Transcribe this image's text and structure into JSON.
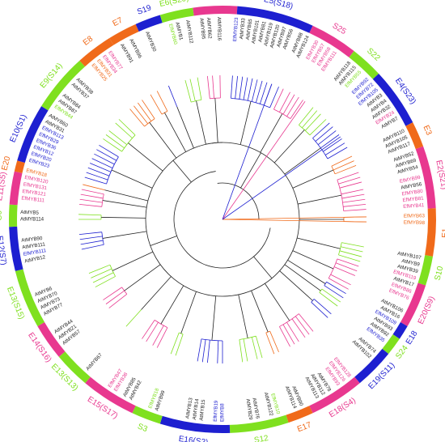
{
  "colors": {
    "magenta": "#e8388f",
    "blue": "#1d1fd0",
    "green": "#7fe01f",
    "orange": "#f06a1a",
    "black": "#222222"
  },
  "ring_segments": [
    {
      "label": "S15",
      "color": "magenta",
      "from": -8,
      "to": 4
    },
    {
      "label": "E5(S18)",
      "color": "blue",
      "from": 4,
      "to": 25
    },
    {
      "label": "S25",
      "color": "magenta",
      "from": 25,
      "to": 38
    },
    {
      "label": "S22",
      "color": "green",
      "from": 38,
      "to": 47
    },
    {
      "label": "E4(S23)",
      "color": "blue",
      "from": 47,
      "to": 63
    },
    {
      "label": "E3",
      "color": "orange",
      "from": 63,
      "to": 70
    },
    {
      "label": "E2(S21)",
      "color": "magenta",
      "from": 70,
      "to": 87
    },
    {
      "label": "E1",
      "color": "orange",
      "from": 87,
      "to": 100
    },
    {
      "label": "S10",
      "color": "green",
      "from": 100,
      "to": 108
    },
    {
      "label": "E20(S9)",
      "color": "magenta",
      "from": 108,
      "to": 120
    },
    {
      "label": "E18",
      "color": "blue",
      "from": 120,
      "to": 124
    },
    {
      "label": "S24",
      "color": "green",
      "from": 124,
      "to": 129
    },
    {
      "label": "E19(S11)",
      "color": "blue",
      "from": 129,
      "to": 140
    },
    {
      "label": "E18(S4)",
      "color": "magenta",
      "from": 140,
      "to": 155
    },
    {
      "label": "E17",
      "color": "orange",
      "from": 155,
      "to": 162
    },
    {
      "label": "S12",
      "color": "green",
      "from": 162,
      "to": 178
    },
    {
      "label": "E16(S2)",
      "color": "blue",
      "from": 178,
      "to": 197
    },
    {
      "label": "S3",
      "color": "green",
      "from": 197,
      "to": 205
    },
    {
      "label": "E15(S17)",
      "color": "magenta",
      "from": 205,
      "to": 220
    },
    {
      "label": "E13(S13)",
      "color": "green",
      "from": 220,
      "to": 230
    },
    {
      "label": "E14(S16)",
      "color": "magenta",
      "from": 230,
      "to": 240
    },
    {
      "label": "E13(S15)",
      "color": "green",
      "from": 240,
      "to": 256
    },
    {
      "label": "E12(S7)",
      "color": "blue",
      "from": 256,
      "to": 268
    },
    {
      "label": "S6",
      "color": "green",
      "from": 268,
      "to": 274
    },
    {
      "label": "E11(S5)",
      "color": "magenta",
      "from": 274,
      "to": 283
    },
    {
      "label": "E20",
      "color": "orange",
      "from": 283,
      "to": 286
    },
    {
      "label": "E10(S1)",
      "color": "blue",
      "from": 286,
      "to": 302
    },
    {
      "label": "E9(S14)",
      "color": "green",
      "from": 302,
      "to": 318
    },
    {
      "label": "E8",
      "color": "orange",
      "from": 318,
      "to": 328
    },
    {
      "label": "E7",
      "color": "orange",
      "from": 328,
      "to": 336
    },
    {
      "label": "S19",
      "color": "blue",
      "from": 336,
      "to": 343
    },
    {
      "label": "E6(S20)",
      "color": "green",
      "from": 343,
      "to": 352
    }
  ],
  "leaves": [
    {
      "name": "AtMYB95",
      "angle": -6,
      "color": "black"
    },
    {
      "name": "AtMYB62",
      "angle": -4,
      "color": "black"
    },
    {
      "name": "AtMYB116",
      "angle": -1,
      "color": "black"
    },
    {
      "name": "EfMYB123",
      "angle": 4,
      "color": "blue"
    },
    {
      "name": "AtMYB33",
      "angle": 6,
      "color": "black"
    },
    {
      "name": "AtMYB65",
      "angle": 8,
      "color": "black"
    },
    {
      "name": "AtMYB101",
      "angle": 10,
      "color": "black"
    },
    {
      "name": "AtMYB81",
      "angle": 12,
      "color": "black"
    },
    {
      "name": "AtMYB119",
      "angle": 14,
      "color": "black"
    },
    {
      "name": "AtMYB120",
      "angle": 16,
      "color": "black"
    },
    {
      "name": "AtMYB97",
      "angle": 18,
      "color": "black"
    },
    {
      "name": "AtMYB56",
      "angle": 20,
      "color": "black"
    },
    {
      "name": "AtMYB88",
      "angle": 23,
      "color": "black"
    },
    {
      "name": "AtMYB124",
      "angle": 25,
      "color": "black"
    },
    {
      "name": "EfMYB30",
      "angle": 28,
      "color": "magenta"
    },
    {
      "name": "EfMYB57",
      "angle": 30,
      "color": "magenta"
    },
    {
      "name": "EfMYB58",
      "angle": 32,
      "color": "magenta"
    },
    {
      "name": "EfMYB111",
      "angle": 34,
      "color": "magenta"
    },
    {
      "name": "AtMYB118",
      "angle": 39,
      "color": "black"
    },
    {
      "name": "AtMYB115",
      "angle": 41,
      "color": "black"
    },
    {
      "name": "EfMYB55",
      "angle": 43,
      "color": "green"
    },
    {
      "name": "EfMYB92",
      "angle": 46,
      "color": "blue"
    },
    {
      "name": "EfMYB72",
      "angle": 48,
      "color": "blue"
    },
    {
      "name": "EfMYB105",
      "angle": 50,
      "color": "blue"
    },
    {
      "name": "AtMYB3",
      "angle": 52,
      "color": "black"
    },
    {
      "name": "AtMYB4",
      "angle": 54,
      "color": "black"
    },
    {
      "name": "AtMYB32",
      "angle": 56,
      "color": "black"
    },
    {
      "name": "EfMYB24",
      "angle": 58,
      "color": "magenta"
    },
    {
      "name": "AtMYB7",
      "angle": 60,
      "color": "black"
    },
    {
      "name": "AtMYB110",
      "angle": 64,
      "color": "black"
    },
    {
      "name": "AtMYB105",
      "angle": 66,
      "color": "black"
    },
    {
      "name": "AtMYB117",
      "angle": 68,
      "color": "black"
    },
    {
      "name": "AtMYB52",
      "angle": 71,
      "color": "black"
    },
    {
      "name": "AtMYB69",
      "angle": 73,
      "color": "black"
    },
    {
      "name": "AtMYB54",
      "angle": 75,
      "color": "black"
    },
    {
      "name": "EfMYB99",
      "angle": 78,
      "color": "magenta"
    },
    {
      "name": "AtMYB56",
      "angle": 80,
      "color": "black"
    },
    {
      "name": "EfMYB80",
      "angle": 82,
      "color": "magenta"
    },
    {
      "name": "EfMYB81",
      "angle": 84,
      "color": "magenta"
    },
    {
      "name": "EfMYB41",
      "angle": 86,
      "color": "magenta"
    },
    {
      "name": "EfMYB63",
      "angle": 89,
      "color": "orange"
    },
    {
      "name": "EfMYB98",
      "angle": 91,
      "color": "orange"
    },
    {
      "name": "AtMYB107",
      "angle": 101,
      "color": "black"
    },
    {
      "name": "AtMYB9",
      "angle": 103,
      "color": "black"
    },
    {
      "name": "AtMYB39",
      "angle": 105,
      "color": "black"
    },
    {
      "name": "EfMYB119",
      "angle": 107,
      "color": "magenta"
    },
    {
      "name": "AtMYB17",
      "angle": 109,
      "color": "black"
    },
    {
      "name": "EfMYB86",
      "angle": 111,
      "color": "magenta"
    },
    {
      "name": "EfMYB76",
      "angle": 113,
      "color": "magenta"
    },
    {
      "name": "AtMYB106",
      "angle": 117,
      "color": "black"
    },
    {
      "name": "AtMYB16",
      "angle": 119,
      "color": "black"
    },
    {
      "name": "EfMYB109",
      "angle": 121,
      "color": "blue"
    },
    {
      "name": "AtMYB93",
      "angle": 123,
      "color": "black"
    },
    {
      "name": "AtMYB92",
      "angle": 125,
      "color": "black"
    },
    {
      "name": "EfMYB35",
      "angle": 127,
      "color": "blue"
    },
    {
      "name": "AtMYB74",
      "angle": 131,
      "color": "black"
    },
    {
      "name": "AtMYB102",
      "angle": 133,
      "color": "black"
    },
    {
      "name": "EfMYB128",
      "angle": 141,
      "color": "magenta"
    },
    {
      "name": "EfMYB126",
      "angle": 143,
      "color": "magenta"
    },
    {
      "name": "EfMYB93",
      "angle": 145,
      "color": "magenta"
    },
    {
      "name": "AtMYB78",
      "angle": 148,
      "color": "black"
    },
    {
      "name": "AtMYB112",
      "angle": 150,
      "color": "black"
    },
    {
      "name": "AtMYB113",
      "angle": 152,
      "color": "black"
    },
    {
      "name": "AtMYB90",
      "angle": 157,
      "color": "black"
    },
    {
      "name": "AtMYB114",
      "angle": 159,
      "color": "black"
    },
    {
      "name": "EfMYB10",
      "angle": 164,
      "color": "green"
    },
    {
      "name": "AtMYB122",
      "angle": 166,
      "color": "black"
    },
    {
      "name": "AtMYB76",
      "angle": 170,
      "color": "black"
    },
    {
      "name": "AtMYB29",
      "angle": 172,
      "color": "black"
    },
    {
      "name": "EfMYB8",
      "angle": 180,
      "color": "blue"
    },
    {
      "name": "EfMYB19",
      "angle": 182,
      "color": "blue"
    },
    {
      "name": "AtMYB15",
      "angle": 186,
      "color": "black"
    },
    {
      "name": "AtMYB14",
      "angle": 188,
      "color": "black"
    },
    {
      "name": "AtMYB13",
      "angle": 190,
      "color": "black"
    },
    {
      "name": "AtMYB99",
      "angle": 199,
      "color": "black"
    },
    {
      "name": "EfMYB18",
      "angle": 201,
      "color": "green"
    },
    {
      "name": "AtMYB42",
      "angle": 207,
      "color": "black"
    },
    {
      "name": "AtMYB85",
      "angle": 209,
      "color": "black"
    },
    {
      "name": "EfMYB38",
      "angle": 212,
      "color": "magenta"
    },
    {
      "name": "EfMYB47",
      "angle": 214,
      "color": "magenta"
    },
    {
      "name": "AtMYB67",
      "angle": 222,
      "color": "black"
    },
    {
      "name": "AtMYB57",
      "angle": 232,
      "color": "black"
    },
    {
      "name": "AtMYB21",
      "angle": 234,
      "color": "black"
    },
    {
      "name": "AtMYB44",
      "angle": 236,
      "color": "black"
    },
    {
      "name": "AtMYB77",
      "angle": 242,
      "color": "black"
    },
    {
      "name": "AtMYB73",
      "angle": 244,
      "color": "black"
    },
    {
      "name": "AtMYB70",
      "angle": 246,
      "color": "black"
    },
    {
      "name": "AtMYB6",
      "angle": 248,
      "color": "black"
    },
    {
      "name": "AtMYB12",
      "angle": 258,
      "color": "black"
    },
    {
      "name": "EfMYB111",
      "angle": 260,
      "color": "blue"
    },
    {
      "name": "AtMYB111",
      "angle": 262,
      "color": "black"
    },
    {
      "name": "AtMYB90",
      "angle": 264,
      "color": "black"
    },
    {
      "name": "AtMYB114",
      "angle": 270,
      "color": "black"
    },
    {
      "name": "AtMYB5",
      "angle": 272,
      "color": "black"
    },
    {
      "name": "EfMYB111",
      "angle": 276,
      "color": "magenta"
    },
    {
      "name": "EfMYB121",
      "angle": 278,
      "color": "magenta"
    },
    {
      "name": "EfMYB131",
      "angle": 280,
      "color": "magenta"
    },
    {
      "name": "EfMYB120",
      "angle": 282,
      "color": "magenta"
    },
    {
      "name": "EfMYB18",
      "angle": 284,
      "color": "orange"
    },
    {
      "name": "EfMYB23",
      "angle": 287,
      "color": "blue"
    },
    {
      "name": "EfMYB20",
      "angle": 289,
      "color": "blue"
    },
    {
      "name": "EfMYB12",
      "angle": 291,
      "color": "blue"
    },
    {
      "name": "EfMYB36",
      "angle": 293,
      "color": "blue"
    },
    {
      "name": "EfMYB29",
      "angle": 295,
      "color": "blue"
    },
    {
      "name": "EfMYB113",
      "angle": 297,
      "color": "blue"
    },
    {
      "name": "AtMYB31",
      "angle": 299,
      "color": "black"
    },
    {
      "name": "AtMYB60",
      "angle": 301,
      "color": "black"
    },
    {
      "name": "EfMYB44",
      "angle": 304,
      "color": "green"
    },
    {
      "name": "AtMYB87",
      "angle": 306,
      "color": "black"
    },
    {
      "name": "AtMYB84",
      "angle": 308,
      "color": "black"
    },
    {
      "name": "AtMYB37",
      "angle": 312,
      "color": "black"
    },
    {
      "name": "AtMYB38",
      "angle": 314,
      "color": "black"
    },
    {
      "name": "EfMYB25",
      "angle": 320,
      "color": "orange"
    },
    {
      "name": "EfMYB31",
      "angle": 322,
      "color": "orange"
    },
    {
      "name": "EfMYB34",
      "angle": 324,
      "color": "magenta"
    },
    {
      "name": "EfMYB77",
      "angle": 326,
      "color": "magenta"
    },
    {
      "name": "AtMYB91",
      "angle": 330,
      "color": "black"
    },
    {
      "name": "AtMYB96",
      "angle": 333,
      "color": "black"
    },
    {
      "name": "AtMYB30",
      "angle": 338,
      "color": "black"
    },
    {
      "name": "EfMYB60",
      "angle": 345,
      "color": "green"
    },
    {
      "name": "AtMYB1",
      "angle": 347,
      "color": "black"
    },
    {
      "name": "AtMYB112",
      "angle": 350,
      "color": "black"
    }
  ]
}
